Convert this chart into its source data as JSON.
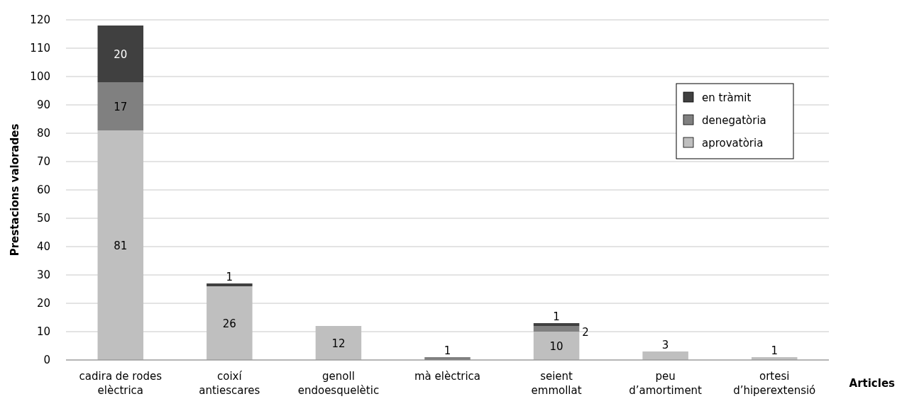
{
  "chart_data": {
    "type": "bar",
    "stacked": true,
    "xlabel": "Articles",
    "ylabel": "Prestacions valorades",
    "categories": [
      "cadira de rodes\nelèctrica",
      "coixí\nantiescares",
      "genoll\nendoesquelètic",
      "mà elèctrica",
      "seient\nemmollat",
      "peu\nd’amortiment",
      "ortesi\nd’hiperextensió"
    ],
    "series": [
      {
        "name": "aprovatòria",
        "color": "#bfbfbf",
        "values": [
          81,
          26,
          12,
          null,
          10,
          3,
          1
        ]
      },
      {
        "name": "denegatòria",
        "color": "#808080",
        "values": [
          17,
          null,
          null,
          1,
          2,
          null,
          null
        ]
      },
      {
        "name": "en tràmit",
        "color": "#404040",
        "values": [
          20,
          1,
          null,
          null,
          1,
          null,
          null
        ]
      }
    ],
    "data_labels": true,
    "ylim": [
      0,
      120
    ],
    "yticks": [
      0,
      10,
      20,
      30,
      40,
      50,
      60,
      70,
      80,
      90,
      100,
      110,
      120
    ],
    "grid": "y",
    "legend": "top right"
  }
}
